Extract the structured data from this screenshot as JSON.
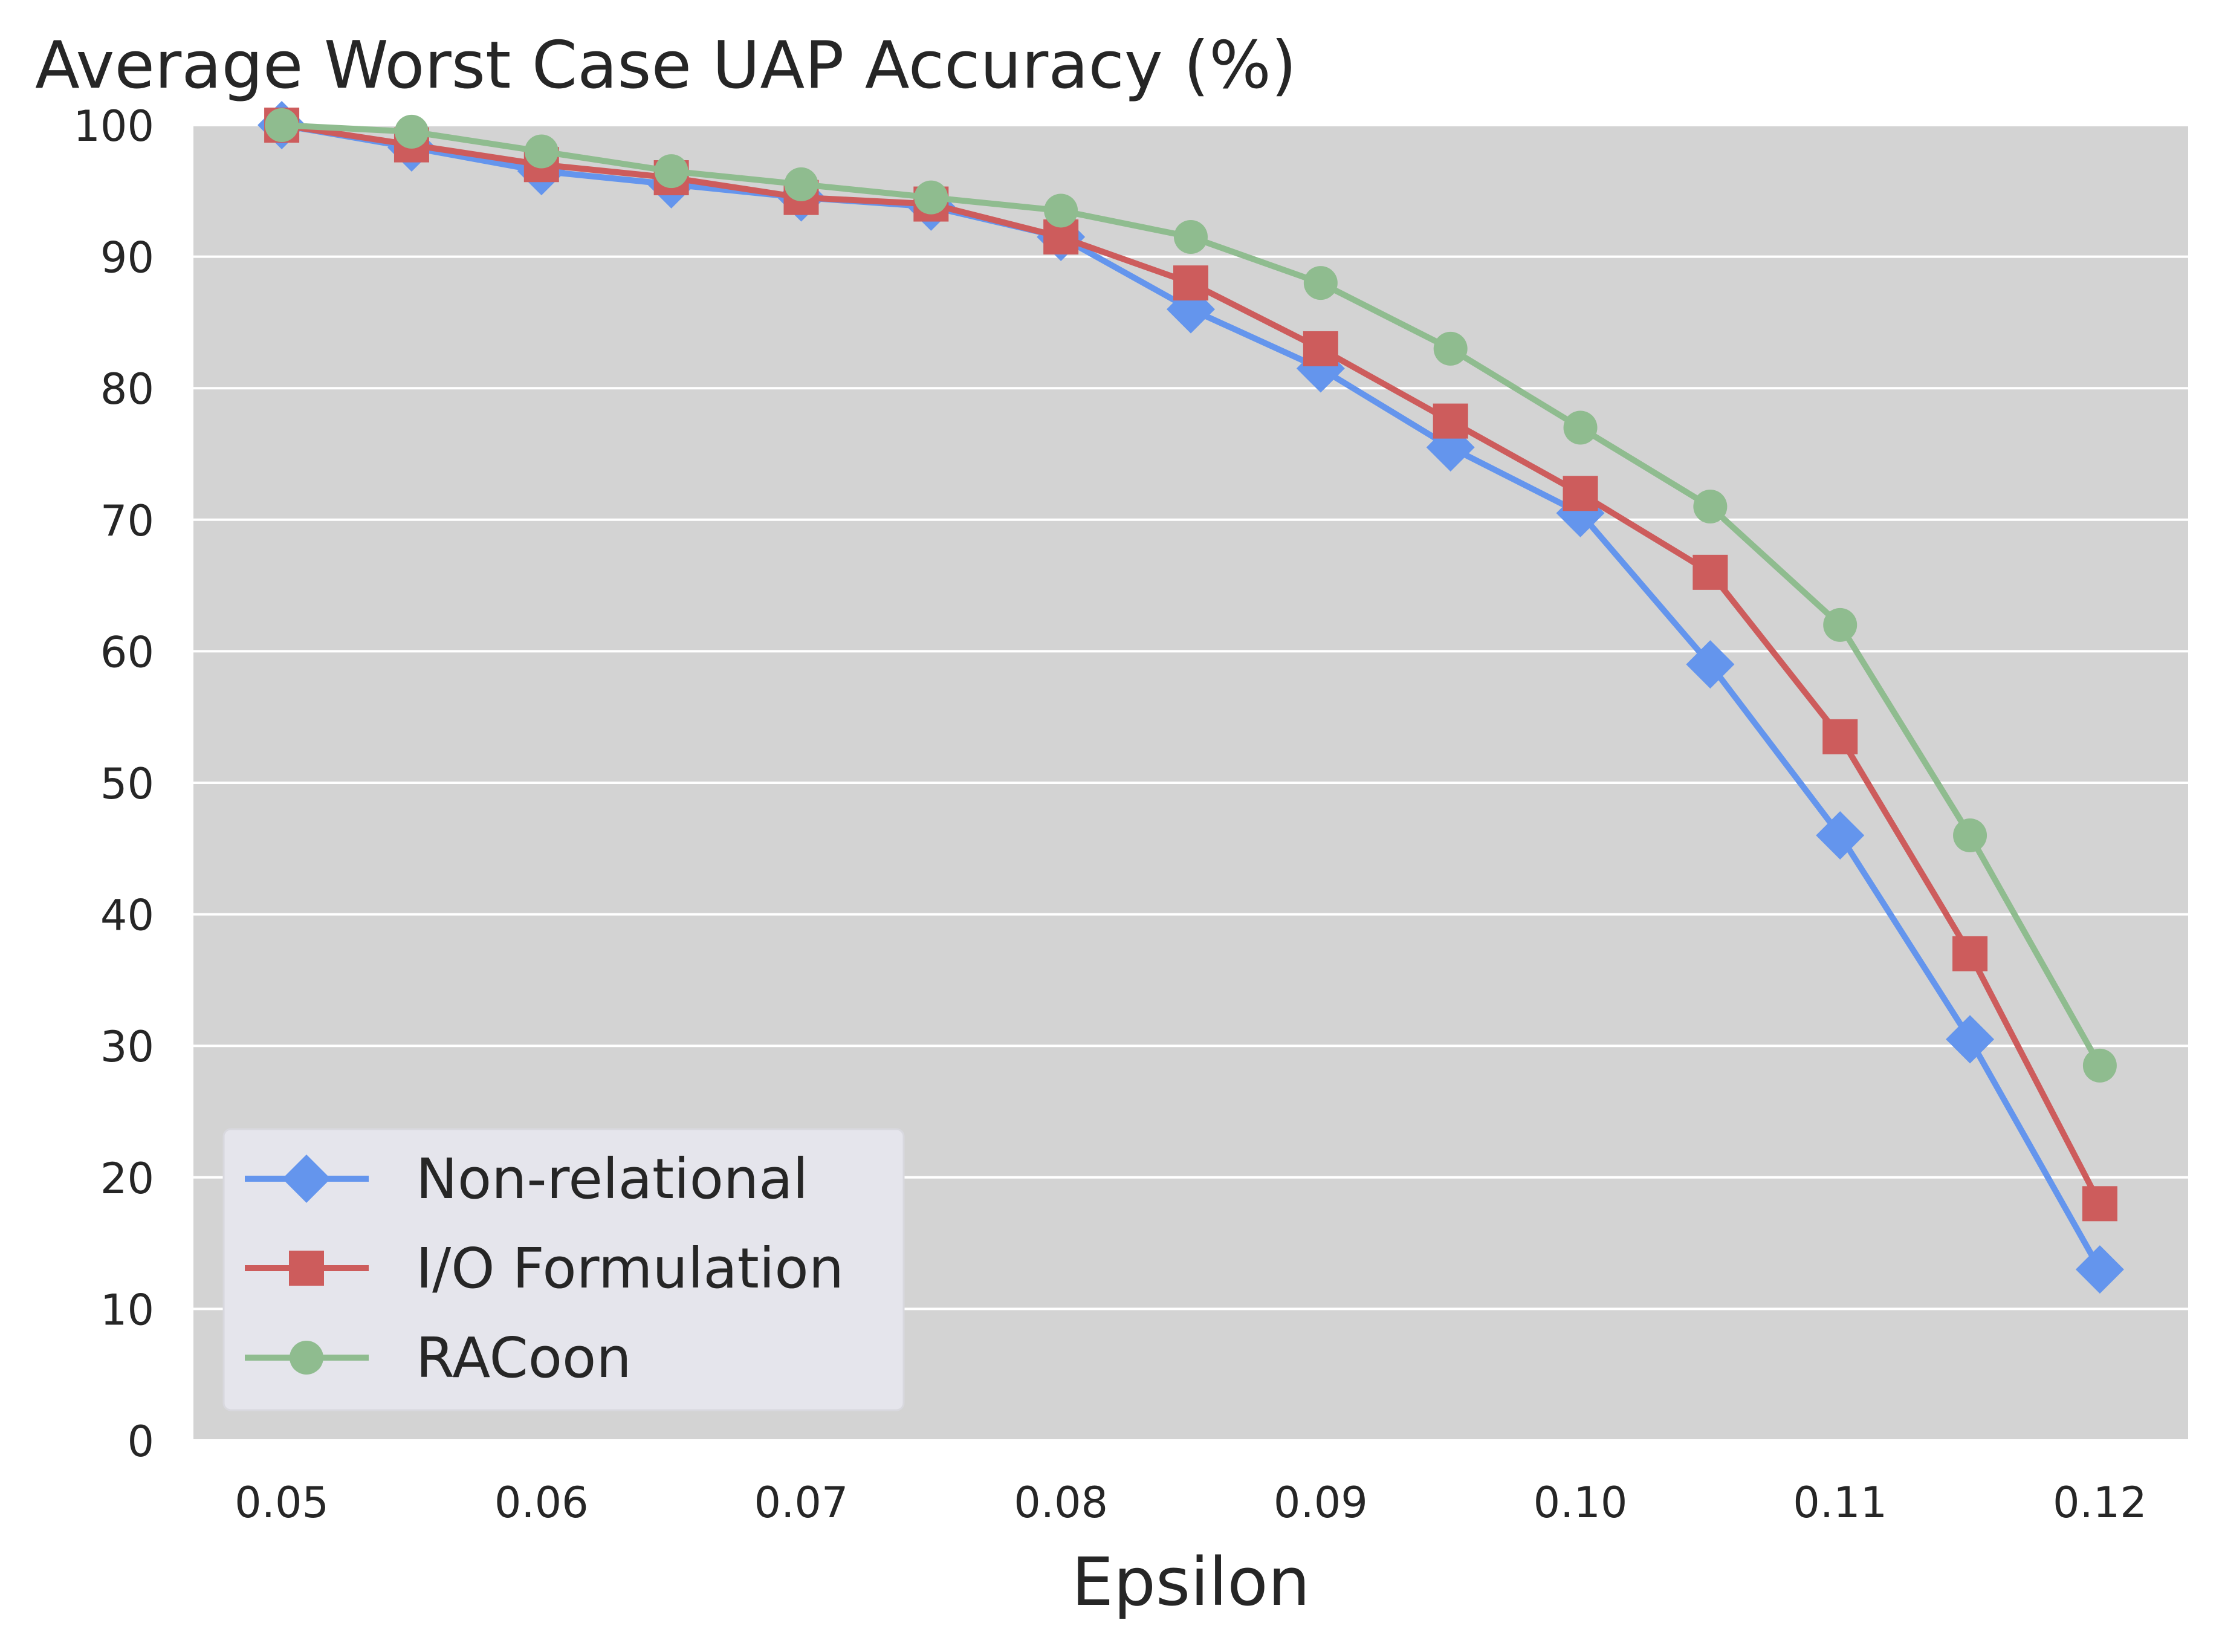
{
  "chart_data": {
    "type": "line",
    "title": "Average Worst Case UAP Accuracy (%)",
    "xlabel": "Epsilon",
    "ylabel": "",
    "x": [
      0.05,
      0.055,
      0.06,
      0.065,
      0.07,
      0.075,
      0.08,
      0.085,
      0.09,
      0.095,
      0.1,
      0.105,
      0.11,
      0.115,
      0.12
    ],
    "xlim": [
      0.0466,
      0.1234
    ],
    "ylim": [
      0,
      100
    ],
    "xticks": [
      "0.05",
      "0.06",
      "0.07",
      "0.08",
      "0.09",
      "0.10",
      "0.11",
      "0.12"
    ],
    "xtick_values": [
      0.05,
      0.06,
      0.07,
      0.08,
      0.09,
      0.1,
      0.11,
      0.12
    ],
    "yticks": [
      "0",
      "10",
      "20",
      "30",
      "40",
      "50",
      "60",
      "70",
      "80",
      "90",
      "100"
    ],
    "ytick_values": [
      0,
      10,
      20,
      30,
      40,
      50,
      60,
      70,
      80,
      90,
      100
    ],
    "grid": true,
    "legend_position": "lower-left",
    "series": [
      {
        "name": "Non-relational",
        "color": "#6495ED",
        "marker": "diamond",
        "values": [
          100,
          98.3,
          96.5,
          95.5,
          94.5,
          93.8,
          91.5,
          86,
          81.5,
          75.5,
          70.5,
          59,
          46,
          30.5,
          13
        ]
      },
      {
        "name": "I/O Formulation",
        "color": "#CD5C5C",
        "marker": "square",
        "values": [
          100,
          98.5,
          97,
          96,
          94.5,
          94,
          91.5,
          88,
          83,
          77.5,
          72,
          66,
          53.5,
          37,
          18
        ]
      },
      {
        "name": "RACoon",
        "color": "#8FBC8F",
        "marker": "circle",
        "values": [
          100,
          99.5,
          98,
          96.5,
          95.5,
          94.5,
          93.5,
          91.5,
          88,
          83,
          77,
          71,
          62,
          46,
          28.5
        ]
      }
    ],
    "colors": {
      "plot_background": "#D3D3D3",
      "grid": "#FFFFFF",
      "legend_background": "#E5E5EC",
      "text": "#262626"
    }
  }
}
